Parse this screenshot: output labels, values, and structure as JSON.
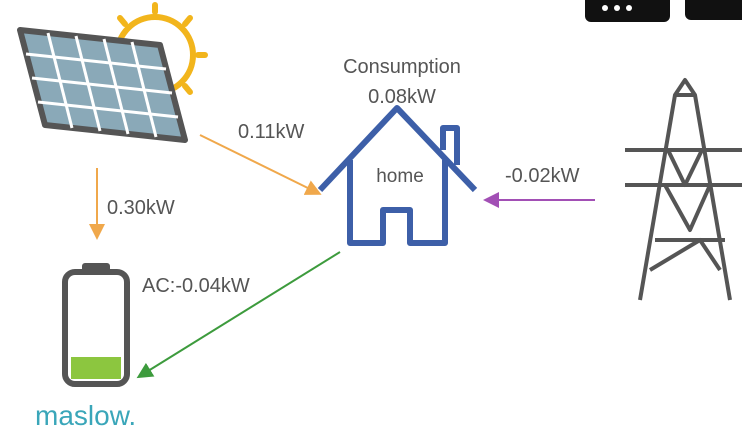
{
  "flows": {
    "solar_to_home": "0.11kW",
    "solar_to_battery": "0.30kW",
    "grid_to_home": "-0.02kW",
    "home_to_battery": "AC:-0.04kW"
  },
  "home": {
    "label": "home",
    "consumption_title": "Consumption",
    "consumption_value": "0.08kW"
  },
  "brand": "maslow."
}
